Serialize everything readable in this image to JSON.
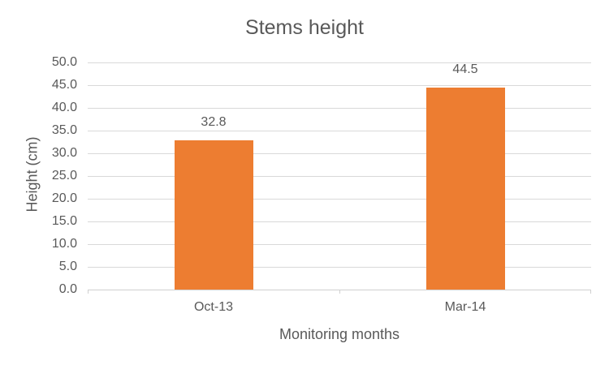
{
  "title": "Stems height",
  "colors": {
    "bar": "#ED7D31",
    "title_text": "#595959",
    "axis_text": "#595959",
    "gridline": "#D9D9D9",
    "axis_line": "#D0D0D0",
    "background": "#FFFFFF"
  },
  "chart_data": {
    "type": "bar",
    "title": "Stems height",
    "categories": [
      "Oct-13",
      "Mar-14"
    ],
    "values": [
      32.8,
      44.5
    ],
    "data_labels": [
      "32.8",
      "44.5"
    ],
    "xlabel": "Monitoring months",
    "ylabel": "Height (cm)",
    "ylim": [
      0,
      50
    ],
    "ytick_step": 5,
    "ytick_labels": [
      "0.0",
      "5.0",
      "10.0",
      "15.0",
      "20.0",
      "25.0",
      "30.0",
      "35.0",
      "40.0",
      "45.0",
      "50.0"
    ],
    "grid": true,
    "legend": false,
    "bar_color": "#ED7D31"
  }
}
